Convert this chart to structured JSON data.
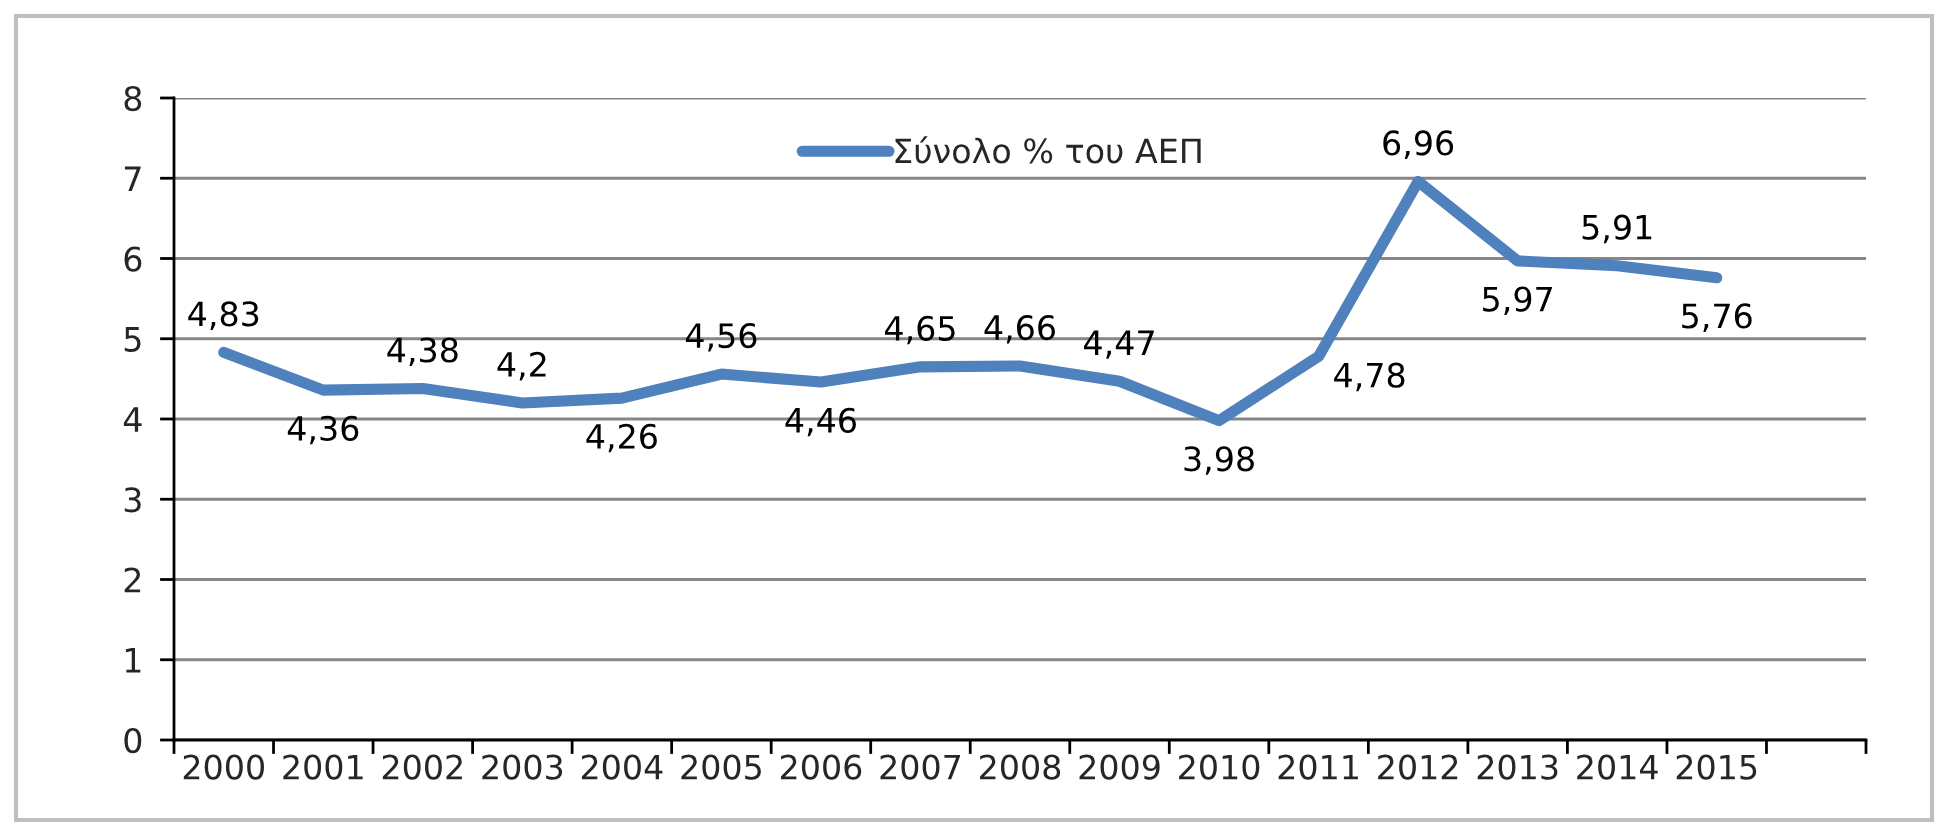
{
  "chart_data": {
    "type": "line",
    "categories": [
      "2000",
      "2001",
      "2002",
      "2003",
      "2004",
      "2005",
      "2006",
      "2007",
      "2008",
      "2009",
      "2010",
      "2011",
      "2012",
      "2013",
      "2014",
      "2015",
      null
    ],
    "series": [
      {
        "name": "Σύνολο % του ΑΕΠ",
        "color": "#4f81bd",
        "values": [
          4.83,
          4.36,
          4.38,
          4.2,
          4.26,
          4.56,
          4.46,
          4.65,
          4.66,
          4.47,
          3.98,
          4.78,
          6.96,
          5.97,
          5.91,
          5.76,
          null
        ],
        "value_labels": [
          "4,83",
          "4,36",
          "4,38",
          "4,2",
          "4,26",
          "4,56",
          "4,46",
          "4,65",
          "4,66",
          "4,47",
          "3,98",
          "4,78",
          "6,96",
          "5,97",
          "5,91",
          "5,76",
          null
        ]
      }
    ],
    "ylim": [
      0,
      8
    ],
    "yticks": [
      0,
      1,
      2,
      3,
      4,
      5,
      6,
      7,
      8
    ],
    "grid": "y",
    "legend": "top",
    "marker": "none",
    "line_style": "solid"
  }
}
